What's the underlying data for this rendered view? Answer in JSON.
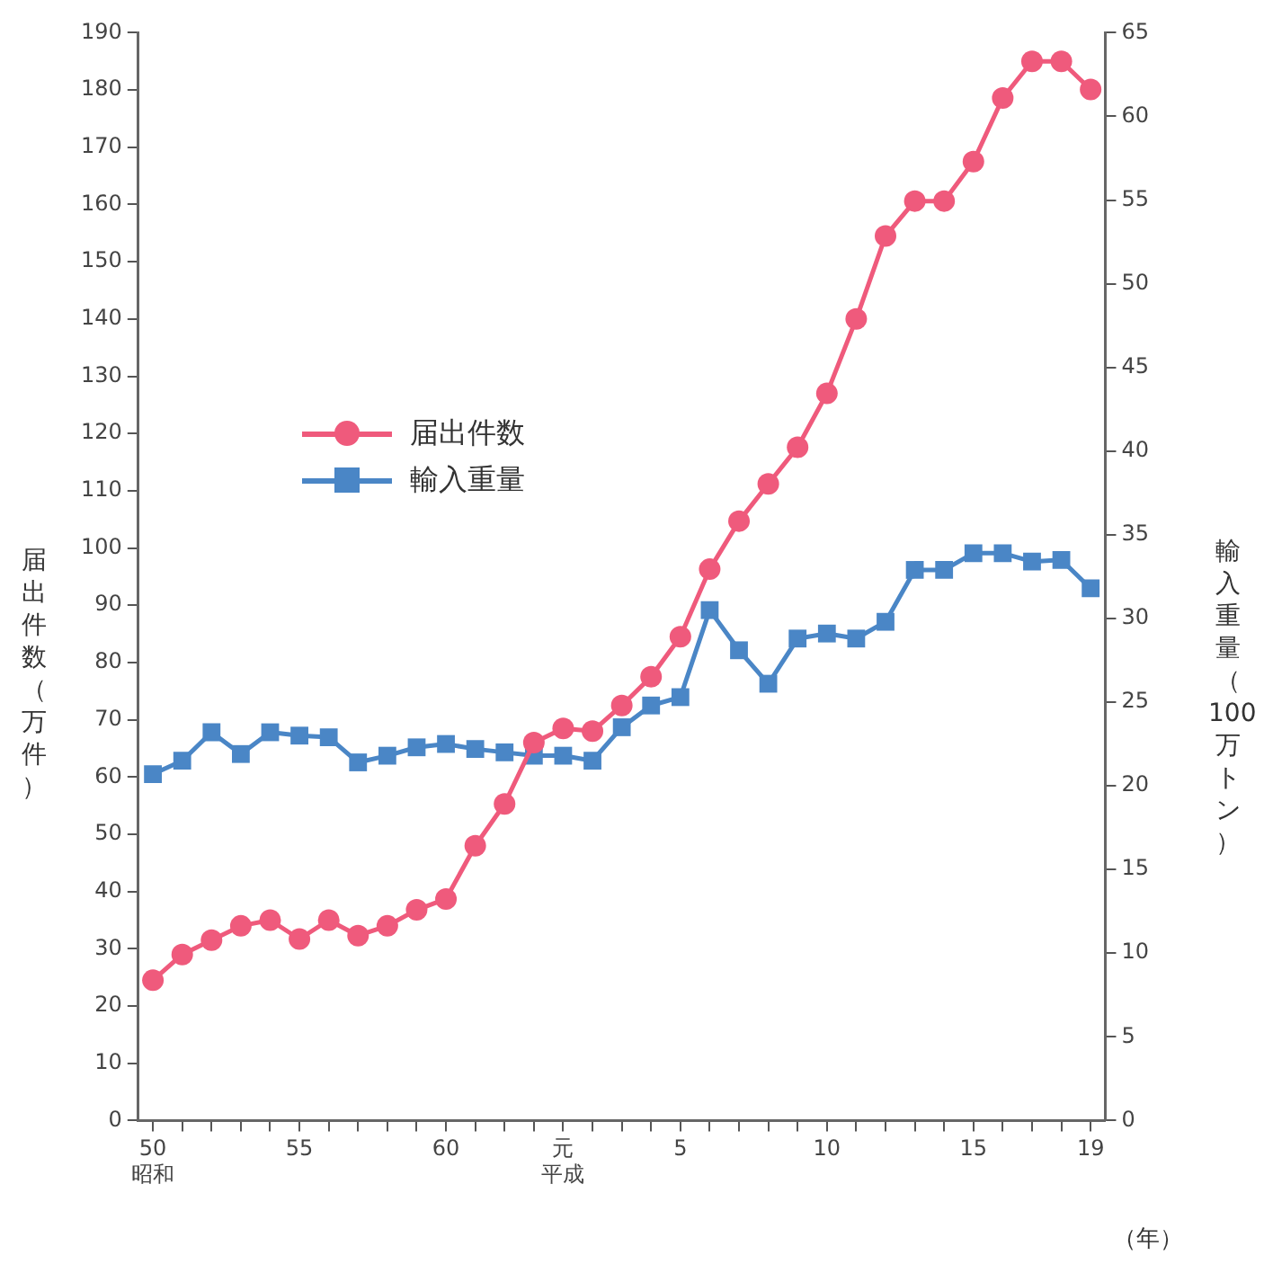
{
  "chart_data": {
    "type": "line",
    "categories": [
      "50昭和",
      null,
      null,
      null,
      null,
      "55",
      null,
      null,
      null,
      null,
      "60",
      null,
      null,
      null,
      "元平成",
      null,
      null,
      null,
      "5",
      null,
      null,
      null,
      null,
      "10",
      null,
      null,
      null,
      null,
      "15",
      null,
      null,
      null,
      "19"
    ],
    "series": [
      {
        "name": "届出件数",
        "color": "#ef5a7c",
        "marker": "circle",
        "values": [
          24.5,
          29,
          31.5,
          34,
          35,
          31.7,
          35,
          32.3,
          34,
          36.8,
          38.7,
          48,
          55.3,
          66,
          68.5,
          68,
          72.5,
          77.5,
          84.5,
          96.3,
          104.7,
          111.2,
          117.6,
          127,
          140,
          154.5,
          160.6,
          160.6,
          167.5,
          178.6,
          185,
          185,
          180.1
        ]
      },
      {
        "name": "輸入重量",
        "color": "#4a86c6",
        "marker": "square",
        "axis": "y2",
        "values": [
          20.7,
          21.5,
          23.2,
          21.9,
          23.2,
          23,
          22.9,
          21.4,
          21.8,
          22.3,
          22.5,
          22.2,
          22,
          21.8,
          21.8,
          21.5,
          23.5,
          24.8,
          25.3,
          30.5,
          28.1,
          26.1,
          28.8,
          29.1,
          28.8,
          29.8,
          32.9,
          32.9,
          33.9,
          33.9,
          33.4,
          33.5,
          31.8
        ]
      }
    ],
    "ylabel": "届出件数（万件）",
    "y2label": "輸入重量（100万トン）",
    "xlabel": "（年）",
    "ylim": [
      0,
      190
    ],
    "yticks": [
      0,
      10,
      20,
      30,
      40,
      50,
      60,
      70,
      80,
      90,
      100,
      110,
      120,
      130,
      140,
      150,
      160,
      170,
      180,
      190
    ],
    "y2lim": [
      0,
      65
    ],
    "y2ticks": [
      0,
      5,
      10,
      15,
      20,
      25,
      30,
      35,
      40,
      45,
      50,
      55,
      60,
      65
    ],
    "grid": false,
    "legend": "center left",
    "line_style": "solid"
  }
}
